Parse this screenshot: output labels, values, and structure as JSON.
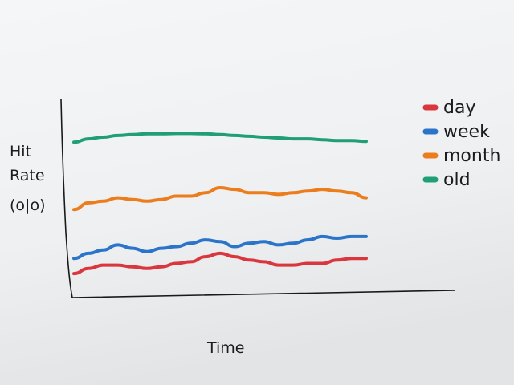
{
  "chart_data": {
    "type": "line",
    "title": "",
    "xlabel": "Time",
    "ylabel_lines": [
      "Hit",
      "Rate",
      "(%)"
    ],
    "ylabel_display": [
      "Hit",
      "Rate",
      "(o|o)"
    ],
    "grid": false,
    "legend_position": "top-right",
    "xlim": [
      0,
      1
    ],
    "ylim": [
      0,
      1
    ],
    "x": [
      0.0,
      0.05,
      0.1,
      0.15,
      0.2,
      0.25,
      0.3,
      0.35,
      0.4,
      0.45,
      0.5,
      0.55,
      0.6,
      0.65,
      0.7,
      0.75,
      0.8,
      0.85,
      0.9,
      0.95,
      1.0
    ],
    "series": [
      {
        "name": "day",
        "color": "#d9363e",
        "values": [
          0.09,
          0.12,
          0.14,
          0.14,
          0.13,
          0.12,
          0.13,
          0.15,
          0.16,
          0.19,
          0.21,
          0.19,
          0.17,
          0.16,
          0.14,
          0.14,
          0.15,
          0.15,
          0.17,
          0.18,
          0.18
        ]
      },
      {
        "name": "week",
        "color": "#2a74c9",
        "values": [
          0.18,
          0.21,
          0.23,
          0.26,
          0.24,
          0.22,
          0.24,
          0.25,
          0.27,
          0.29,
          0.28,
          0.25,
          0.27,
          0.28,
          0.26,
          0.27,
          0.29,
          0.31,
          0.3,
          0.31,
          0.31
        ]
      },
      {
        "name": "month",
        "color": "#ec7d1d",
        "values": [
          0.47,
          0.51,
          0.52,
          0.54,
          0.53,
          0.52,
          0.53,
          0.55,
          0.55,
          0.57,
          0.6,
          0.59,
          0.57,
          0.57,
          0.56,
          0.57,
          0.58,
          0.59,
          0.58,
          0.57,
          0.54
        ]
      },
      {
        "name": "old",
        "color": "#1f9e78",
        "values": [
          0.87,
          0.89,
          0.9,
          0.91,
          0.915,
          0.92,
          0.92,
          0.922,
          0.922,
          0.92,
          0.915,
          0.91,
          0.905,
          0.9,
          0.895,
          0.89,
          0.89,
          0.885,
          0.88,
          0.88,
          0.875
        ]
      }
    ]
  }
}
